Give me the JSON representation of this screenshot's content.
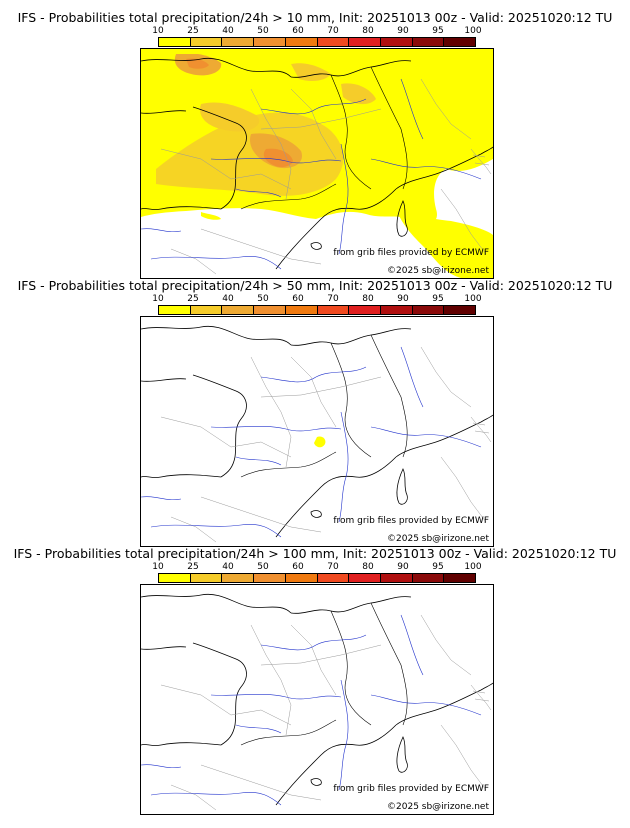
{
  "legend": {
    "ticks": [
      "10",
      "25",
      "40",
      "50",
      "60",
      "70",
      "80",
      "90",
      "95",
      "100"
    ],
    "colors": [
      "#ffff00",
      "#f5cc2a",
      "#eeaa33",
      "#f09030",
      "#f07a10",
      "#f04a20",
      "#e02020",
      "#b01010",
      "#8a0a0a",
      "#600000"
    ]
  },
  "credits": {
    "source": "from grib files provided by ECMWF",
    "copyright": "©2025 sb@irizone.net"
  },
  "panels": [
    {
      "title": "IFS - Probabilities total precipitation/24h > 10 mm, Init: 20251013 00z - Valid: 20251020:12 TU"
    },
    {
      "title": "IFS - Probabilities total precipitation/24h > 50 mm, Init: 20251013 00z - Valid: 20251020:12 TU"
    },
    {
      "title": "IFS - Probabilities total precipitation/24h > 100 mm, Init: 20251013 00z - Valid: 20251020:12 TU"
    }
  ]
}
